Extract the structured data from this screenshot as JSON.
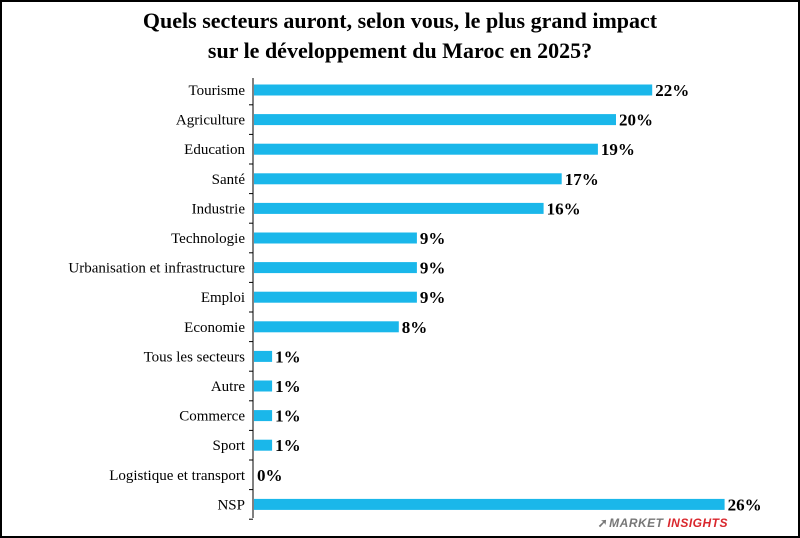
{
  "chart_data": {
    "type": "bar",
    "orientation": "horizontal",
    "title_lines": [
      "Quels secteurs auront, selon vous, le plus grand impact",
      "sur le développement du Maroc en 2025?"
    ],
    "categories": [
      "Tourisme",
      "Agriculture",
      "Education",
      "Santé",
      "Industrie",
      "Technologie",
      "Urbanisation et infrastructure",
      "Emploi",
      "Economie",
      "Tous les secteurs",
      "Autre",
      "Commerce",
      "Sport",
      "Logistique et transport",
      "NSP"
    ],
    "values": [
      22,
      20,
      19,
      17,
      16,
      9,
      9,
      9,
      8,
      1,
      1,
      1,
      1,
      0,
      26
    ],
    "value_labels": [
      "22%",
      "20%",
      "19%",
      "17%",
      "16%",
      "9%",
      "9%",
      "9%",
      "8%",
      "1%",
      "1%",
      "1%",
      "1%",
      "0%",
      "26%"
    ],
    "unit": "%",
    "bar_color": "#1ab7ea",
    "grid": false,
    "legend": "none"
  },
  "branding": {
    "logo_text_1": "MARKET",
    "logo_text_2": "INSIGHTS",
    "logo_accent_color": "#d9262c"
  }
}
